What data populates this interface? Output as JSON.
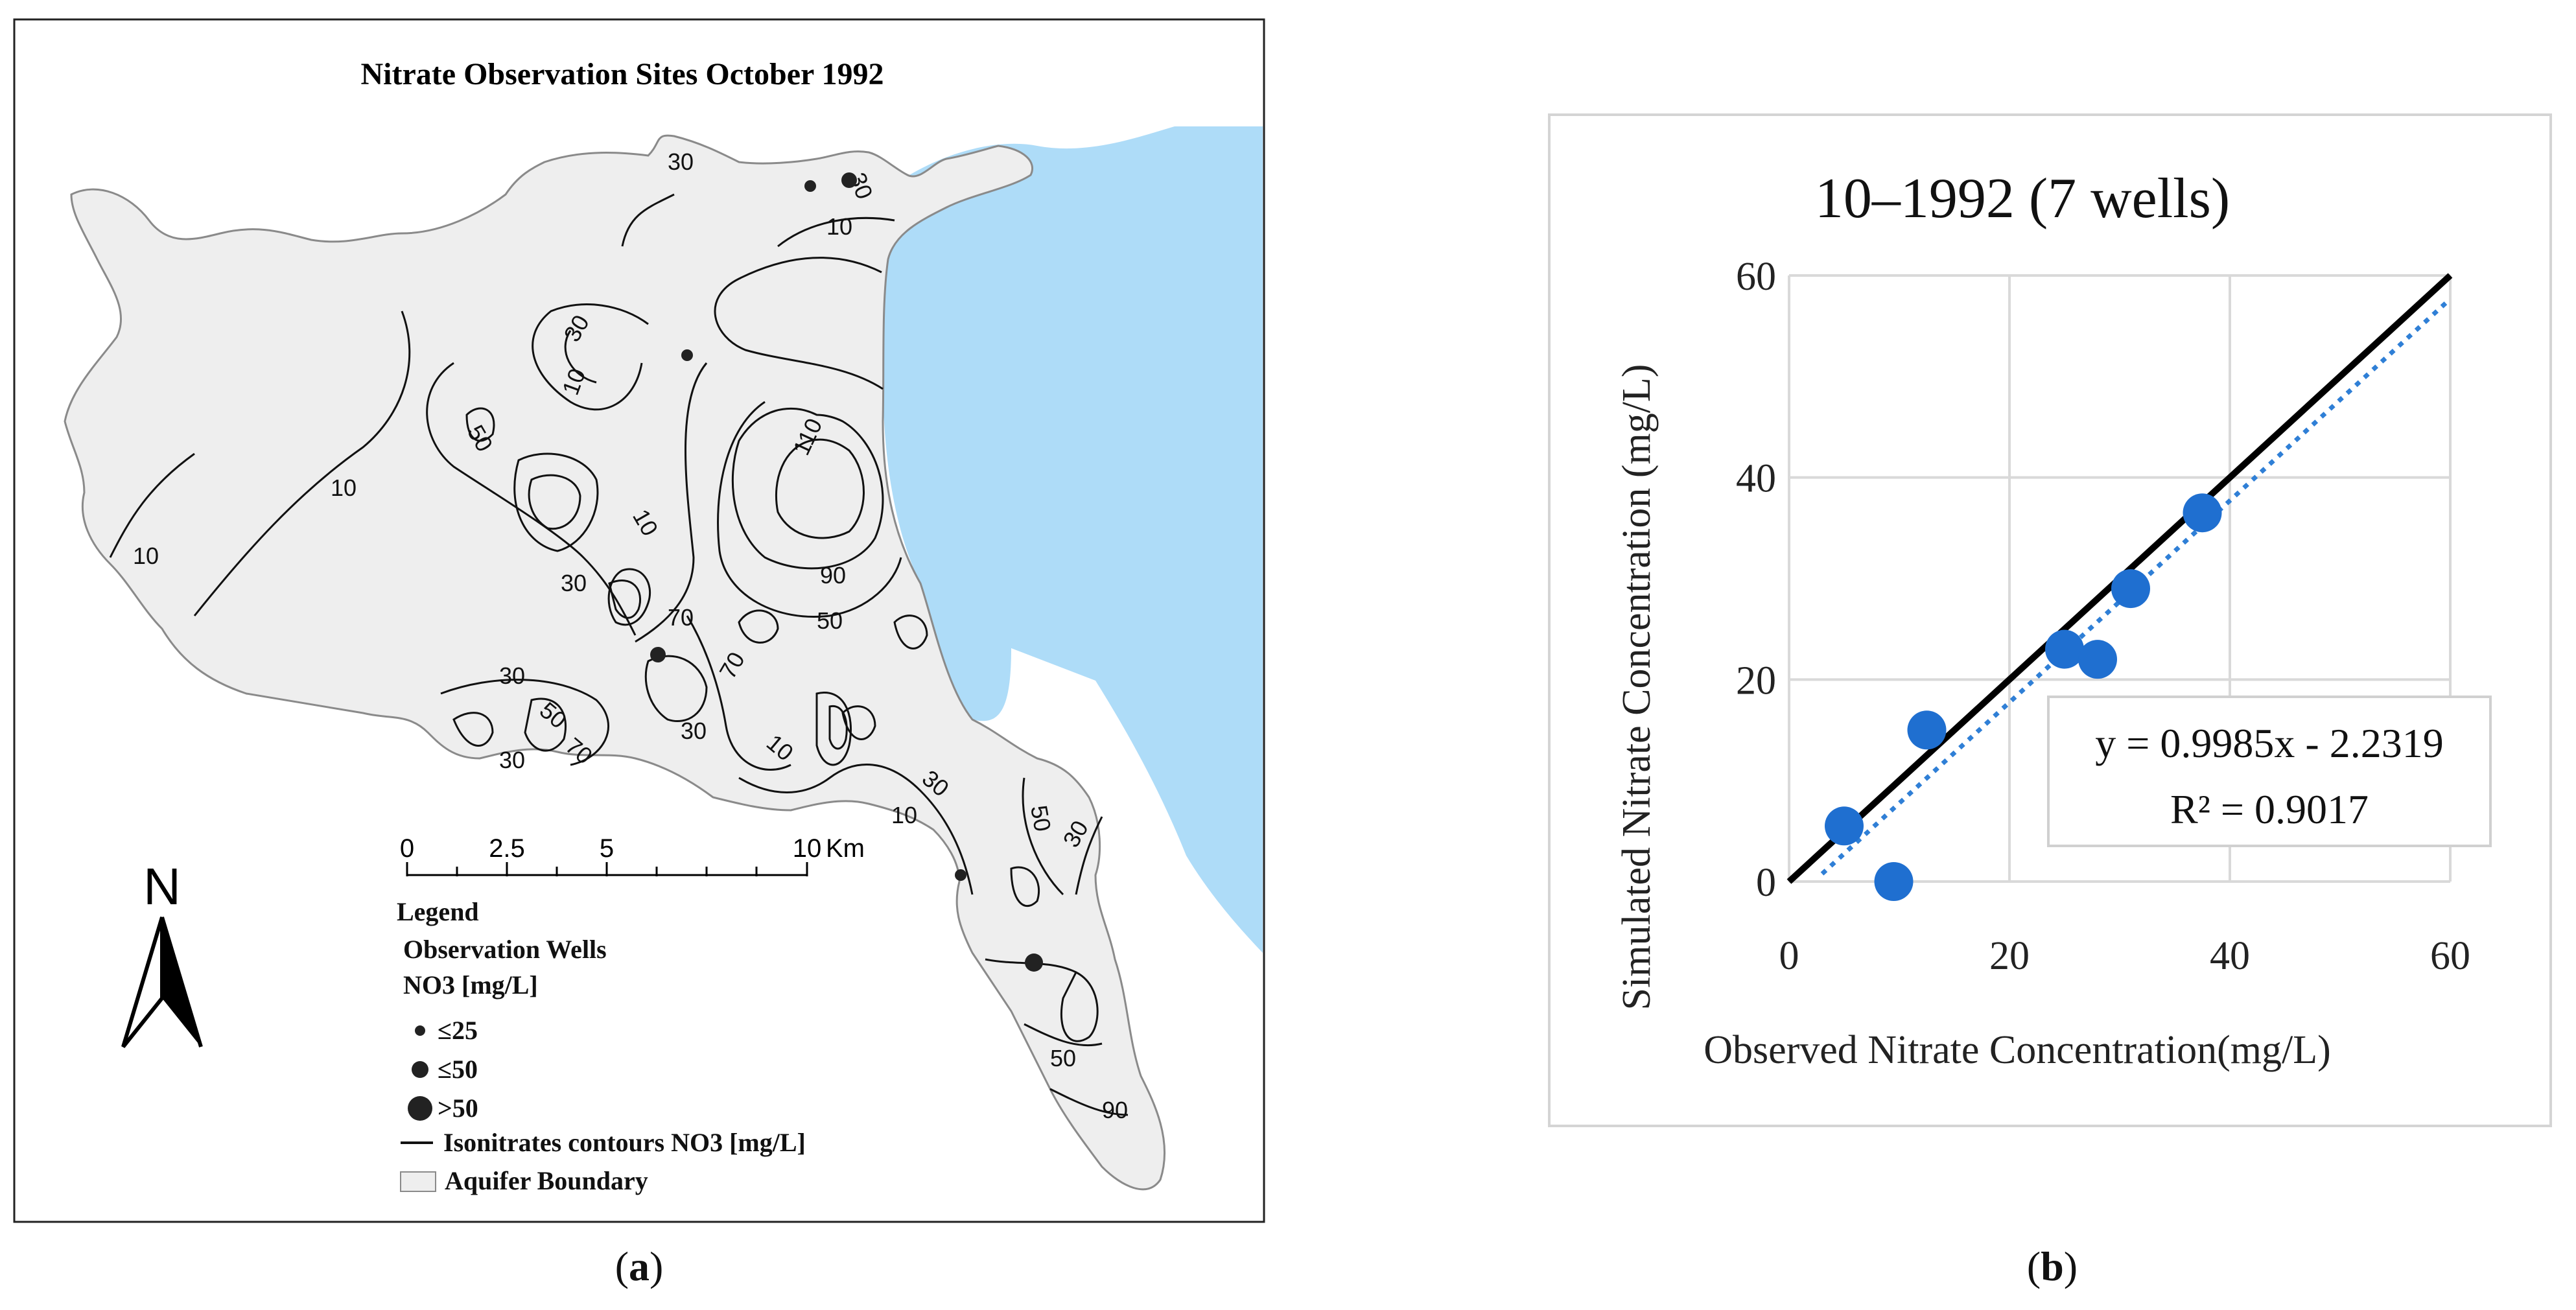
{
  "panel_a": {
    "title": "Nitrate Observation Sites October 1992",
    "caption_open": "(",
    "caption_letter": "a",
    "caption_close": ")",
    "north_label": "N",
    "scale_bar": {
      "ticks": [
        "0",
        "2.5",
        "5",
        "10"
      ],
      "unit": "Km"
    },
    "legend": {
      "heading": "Legend",
      "wells_title": "Observation Wells",
      "wells_units": "NO3 [mg/L]",
      "classes": [
        "≤25",
        "≤50",
        ">50"
      ],
      "contour_label": "Isonitrates contours NO3 [mg/L]",
      "boundary_label": "Aquifer Boundary"
    },
    "contour_labels": [
      "30",
      "30",
      "10",
      "30",
      "10",
      "50",
      "10",
      "110",
      "90",
      "10",
      "10",
      "30",
      "70",
      "50",
      "70",
      "30",
      "50",
      "70",
      "30",
      "30",
      "10",
      "30",
      "10",
      "50",
      "30",
      "50",
      "90"
    ],
    "colors": {
      "water": "#aedcf8",
      "aquifer": "#eeeeee",
      "contour": "#111111"
    }
  },
  "panel_b": {
    "caption_open": "(",
    "caption_letter": "b",
    "caption_close": ")",
    "colors": {
      "points": "#1f6fd0",
      "trend": "#2f7fd6",
      "line": "#000000"
    },
    "chart_data": {
      "type": "scatter",
      "title": "10–1992 (7 wells)",
      "xlabel": "Observed Nitrate Concentration(mg/L)",
      "ylabel": "Simulated Nitrate Concentration (mg/L)",
      "xlim": [
        0,
        60
      ],
      "ylim": [
        0,
        60
      ],
      "xticks": [
        "0",
        "20",
        "40",
        "60"
      ],
      "yticks": [
        "0",
        "20",
        "40",
        "60"
      ],
      "grid": true,
      "points": [
        {
          "x": 5,
          "y": 5.5
        },
        {
          "x": 9.5,
          "y": 0
        },
        {
          "x": 12.5,
          "y": 15
        },
        {
          "x": 25,
          "y": 23
        },
        {
          "x": 28,
          "y": 22
        },
        {
          "x": 31,
          "y": 29
        },
        {
          "x": 37.5,
          "y": 36.5
        }
      ],
      "reference_line": {
        "from": [
          0,
          0
        ],
        "to": [
          60,
          60
        ]
      },
      "trendline": {
        "slope": 0.9985,
        "intercept": -2.2319,
        "x_from": 3,
        "x_to": 60
      },
      "equation": "y = 0.9985x - 2.2319",
      "r2": "R² = 0.9017"
    }
  }
}
